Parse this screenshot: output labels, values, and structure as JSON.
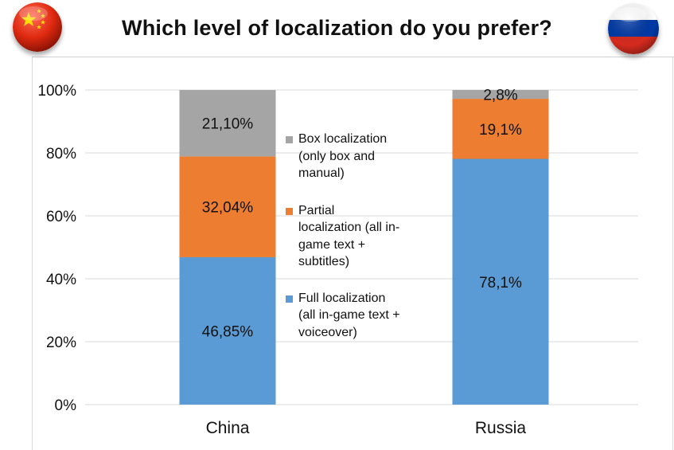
{
  "header": {
    "title": "Which level of localization do you prefer?",
    "flag_left": "china-flag-icon",
    "flag_right": "russia-flag-icon"
  },
  "legend": {
    "placement": "center",
    "items": [
      {
        "key": "box",
        "label": "Box localization\n(only box and\nmanual)"
      },
      {
        "key": "partial",
        "label": "Partial\nlocalization (all in-\ngame text +\nsubtitles)"
      },
      {
        "key": "full",
        "label": "Full localization\n(all in-game text +\nvoiceover)"
      }
    ]
  },
  "colors": {
    "full": "#5b9bd5",
    "partial": "#ed7d31",
    "box": "#a5a5a5",
    "china_red": "#de2910",
    "china_star": "#ffde00",
    "russia_white": "#ffffff",
    "russia_blue": "#0039a6",
    "russia_red": "#d52b1e"
  },
  "chart_data": {
    "type": "bar",
    "stacked": true,
    "normalized": true,
    "categories": [
      "China",
      "Russia"
    ],
    "series": [
      {
        "key": "full",
        "name": "Full localization (all in-game text + voiceover)",
        "values": [
          46.85,
          78.1
        ],
        "labels": [
          "46,85%",
          "78,1%"
        ]
      },
      {
        "key": "partial",
        "name": "Partial localization (all in-game text + subtitles)",
        "values": [
          32.04,
          19.1
        ],
        "labels": [
          "32,04%",
          "19,1%"
        ]
      },
      {
        "key": "box",
        "name": "Box localization (only box and manual)",
        "values": [
          21.1,
          2.8
        ],
        "labels": [
          "21,10%",
          "2,8%"
        ]
      }
    ],
    "yticks": [
      "0%",
      "20%",
      "40%",
      "60%",
      "80%",
      "100%"
    ],
    "ylim": [
      0,
      100
    ],
    "grid": true,
    "title": "Which level of localization do you prefer?",
    "xlabel": "",
    "ylabel": ""
  }
}
